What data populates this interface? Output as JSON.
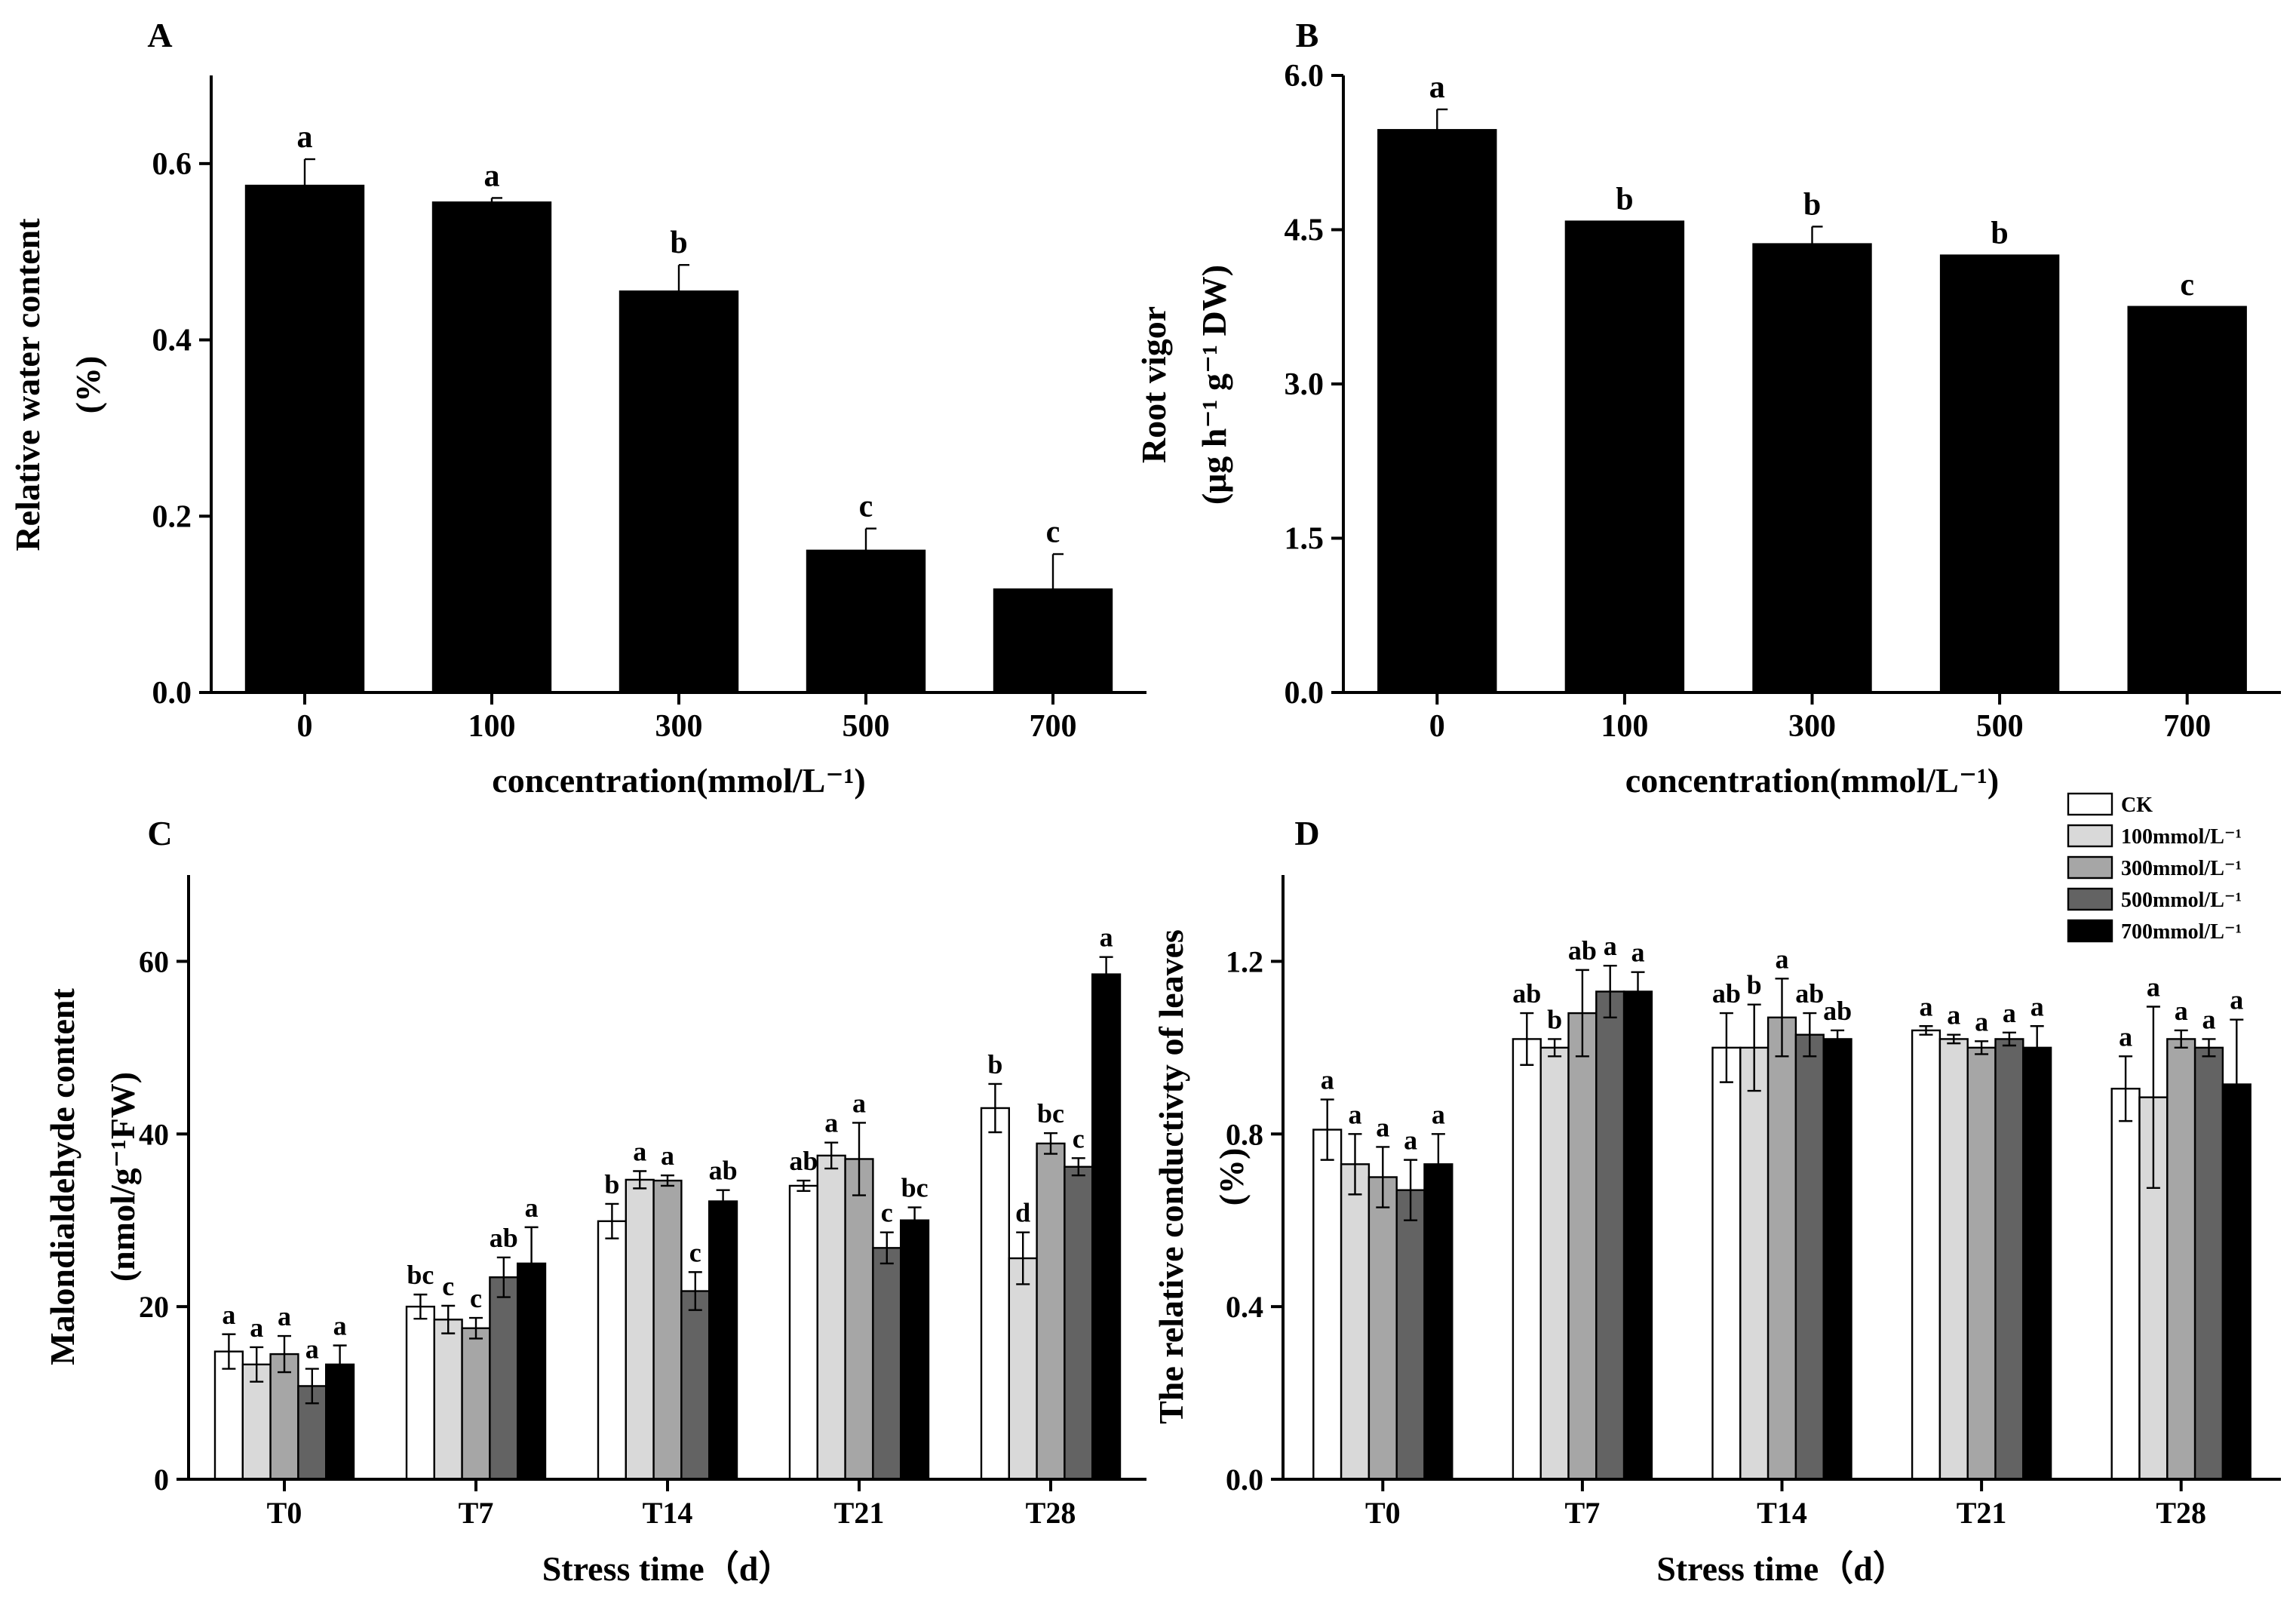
{
  "panels": [
    {
      "label": "A",
      "chart_data": {
        "type": "bar",
        "categories": [
          "0",
          "100",
          "300",
          "500",
          "700"
        ],
        "values": [
          0.575,
          0.556,
          0.455,
          0.161,
          0.117
        ],
        "errors": [
          0.03,
          0.005,
          0.03,
          0.025,
          0.04
        ],
        "letters": [
          "a",
          "a",
          "b",
          "c",
          "c"
        ],
        "xlabel": "concentration(mmol/L⁻¹)",
        "ylabel_lines": [
          "Relative water content",
          "(%)"
        ],
        "ylim": [
          0,
          0.7
        ],
        "yticks": [
          0,
          0.2,
          0.4,
          0.6
        ],
        "ytick_labels": [
          "0.0",
          "0.2",
          "0.4",
          "0.6"
        ],
        "bar_color": "#000000"
      }
    },
    {
      "label": "B",
      "chart_data": {
        "type": "bar",
        "categories": [
          "0",
          "100",
          "300",
          "500",
          "700"
        ],
        "values": [
          5.47,
          4.58,
          4.36,
          4.25,
          3.75
        ],
        "errors": [
          0.2,
          0.0,
          0.17,
          0.0,
          0.0
        ],
        "letters": [
          "a",
          "b",
          "b",
          "b",
          "c"
        ],
        "xlabel": "concentration(mmol/L⁻¹)",
        "ylabel_lines": [
          "Root vigor",
          "(μg h⁻¹ g⁻¹ DW)"
        ],
        "ylim": [
          0,
          6.0
        ],
        "yticks": [
          0,
          1.5,
          3.0,
          4.5,
          6.0
        ],
        "ytick_labels": [
          "0.0",
          "1.5",
          "3.0",
          "4.5",
          "6.0"
        ],
        "bar_color": "#000000"
      }
    },
    {
      "label": "C",
      "chart_data": {
        "type": "bar",
        "categories": [
          "T0",
          "T7",
          "T14",
          "T21",
          "T28"
        ],
        "series": [
          {
            "name": "CK",
            "values": [
              14.8,
              20.0,
              29.9,
              34.0,
              43.0
            ],
            "errors": [
              2.0,
              1.4,
              2.0,
              0.6,
              2.8
            ],
            "letters": [
              "a",
              "bc",
              "b",
              "ab",
              "b"
            ],
            "color": "#ffffff"
          },
          {
            "name": "100mmol/L⁻¹",
            "values": [
              13.3,
              18.5,
              34.7,
              37.5,
              25.6
            ],
            "errors": [
              2.0,
              1.6,
              1.0,
              1.5,
              3.0
            ],
            "letters": [
              "a",
              "c",
              "a",
              "a",
              "d"
            ],
            "color": "#d9d9d9"
          },
          {
            "name": "300mmol/L⁻¹",
            "values": [
              14.5,
              17.5,
              34.6,
              37.1,
              38.9
            ],
            "errors": [
              2.1,
              1.2,
              0.6,
              4.2,
              1.2
            ],
            "letters": [
              "a",
              "c",
              "a",
              "a",
              "bc"
            ],
            "color": "#a6a6a6"
          },
          {
            "name": "500mmol/L⁻¹",
            "values": [
              10.8,
              23.4,
              21.8,
              26.8,
              36.2
            ],
            "errors": [
              2.0,
              2.3,
              2.2,
              1.8,
              1.0
            ],
            "letters": [
              "a",
              "ab",
              "c",
              "c",
              "c"
            ],
            "color": "#636363"
          },
          {
            "name": "700mmol/L⁻¹",
            "values": [
              13.3,
              25.0,
              32.2,
              30.0,
              58.5
            ],
            "errors": [
              2.2,
              4.2,
              1.3,
              1.5,
              2.0
            ],
            "letters": [
              "a",
              "a",
              "ab",
              "bc",
              "a"
            ],
            "color": "#000000"
          }
        ],
        "xlabel": "Stress time（d）",
        "ylabel_lines": [
          "Malondialdehyde content",
          "(nmol/g⁻¹FW)"
        ],
        "ylim": [
          0,
          70
        ],
        "yticks": [
          0,
          20,
          40,
          60
        ],
        "ytick_labels": [
          "0",
          "20",
          "40",
          "60"
        ]
      }
    },
    {
      "label": "D",
      "chart_data": {
        "type": "bar",
        "categories": [
          "T0",
          "T7",
          "T14",
          "T21",
          "T28"
        ],
        "series": [
          {
            "name": "CK",
            "values": [
              0.81,
              1.02,
              1.0,
              1.04,
              0.905
            ],
            "errors": [
              0.07,
              0.06,
              0.08,
              0.01,
              0.075
            ],
            "letters": [
              "a",
              "ab",
              "ab",
              "a",
              "a"
            ],
            "color": "#ffffff"
          },
          {
            "name": "100mmol/L⁻¹",
            "values": [
              0.73,
              1.0,
              1.0,
              1.02,
              0.885
            ],
            "errors": [
              0.07,
              0.02,
              0.1,
              0.01,
              0.21
            ],
            "letters": [
              "a",
              "b",
              "b",
              "a",
              "a"
            ],
            "color": "#d9d9d9"
          },
          {
            "name": "300mmol/L⁻¹",
            "values": [
              0.7,
              1.08,
              1.07,
              1.0,
              1.02
            ],
            "errors": [
              0.07,
              0.1,
              0.09,
              0.015,
              0.02
            ],
            "letters": [
              "a",
              "ab",
              "a",
              "a",
              "a"
            ],
            "color": "#a6a6a6"
          },
          {
            "name": "500mmol/L⁻¹",
            "values": [
              0.67,
              1.13,
              1.03,
              1.02,
              1.0
            ],
            "errors": [
              0.07,
              0.06,
              0.05,
              0.015,
              0.02
            ],
            "letters": [
              "a",
              "a",
              "ab",
              "a",
              "a"
            ],
            "color": "#636363"
          },
          {
            "name": "700mmol/L⁻¹",
            "values": [
              0.73,
              1.13,
              1.02,
              1.0,
              0.915
            ],
            "errors": [
              0.07,
              0.045,
              0.02,
              0.05,
              0.15
            ],
            "letters": [
              "a",
              "a",
              "ab",
              "a",
              "a"
            ],
            "color": "#000000"
          }
        ],
        "xlabel": "Stress time（d）",
        "ylabel_lines": [
          "The relative conductivty of leaves",
          "(%)"
        ],
        "ylim": [
          0,
          1.4
        ],
        "yticks": [
          0,
          0.4,
          0.8,
          1.2
        ],
        "ytick_labels": [
          "0.0",
          "0.4",
          "0.8",
          "1.2"
        ]
      }
    }
  ],
  "legend": {
    "entries": [
      "CK",
      "100mmol/L⁻¹",
      "300mmol/L⁻¹",
      "500mmol/L⁻¹",
      "700mmol/L⁻¹"
    ],
    "colors": [
      "#ffffff",
      "#d9d9d9",
      "#a6a6a6",
      "#636363",
      "#000000"
    ]
  }
}
